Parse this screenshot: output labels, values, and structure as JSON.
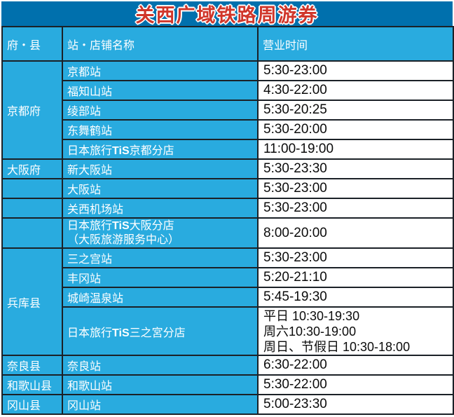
{
  "title": "关西广域铁路周游券",
  "colors": {
    "title_bar_bg": "#0070ad",
    "title_text": "#d0362a",
    "title_outline": "#ffffff",
    "cell_cyan": "#29abdf",
    "border": "#1b2127",
    "header_text": "#ffffff",
    "time_text": "#0b0b0b"
  },
  "header": {
    "col1": "府・县",
    "col2": "站・店铺名称",
    "col3": "营业时间"
  },
  "sections": [
    {
      "prefecture": "京都府",
      "rows": [
        {
          "name": "京都站",
          "time": "5:30-23:00"
        },
        {
          "name": "福知山站",
          "time": "4:30-22:00"
        },
        {
          "name": "绫部站",
          "time": "5:30-20:25"
        },
        {
          "name": "东舞鹤站",
          "time": "5:30-20:00"
        },
        {
          "name_parts": {
            "pre": "日本旅行",
            "tis": "TiS",
            "post": "京都分店"
          },
          "time": "11:00-19:00"
        }
      ]
    },
    {
      "prefecture": "大阪府",
      "rows": [
        {
          "name": "新大阪站",
          "time": "5:30-23:30"
        },
        {
          "name": "大阪站",
          "time": "5:30-23:00"
        },
        {
          "name": "关西机场站",
          "time": "5:30-23:00"
        },
        {
          "name_parts": {
            "pre": "日本旅行",
            "tis": "TiS",
            "post": "大阪分店"
          },
          "name_line2": "（大阪旅游服务中心）",
          "time": "8:00-20:00"
        }
      ]
    },
    {
      "prefecture": "兵库县",
      "rows": [
        {
          "name": "三之宫站",
          "time": "5:30-23:00"
        },
        {
          "name": "丰冈站",
          "time": "5:20-21:10"
        },
        {
          "name": "城崎温泉站",
          "time": "5:45-19:30"
        },
        {
          "name_parts": {
            "pre": "日本旅行",
            "tis": "TiS",
            "post": "三之宮分店"
          },
          "time_lines": [
            "平日 10:30-19:30",
            "周六10:30-19:00",
            "周日、节假日 10:30-18:00"
          ]
        }
      ]
    },
    {
      "prefecture": "奈良县",
      "rows": [
        {
          "name": "奈良站",
          "time": "6:30-22:00"
        }
      ]
    },
    {
      "prefecture": "和歌山县",
      "rows": [
        {
          "name": "和歌山站",
          "time": "5:30-22:00"
        }
      ]
    },
    {
      "prefecture": "冈山县",
      "rows": [
        {
          "name": "冈山站",
          "time": "5:00-23:30"
        }
      ]
    }
  ]
}
